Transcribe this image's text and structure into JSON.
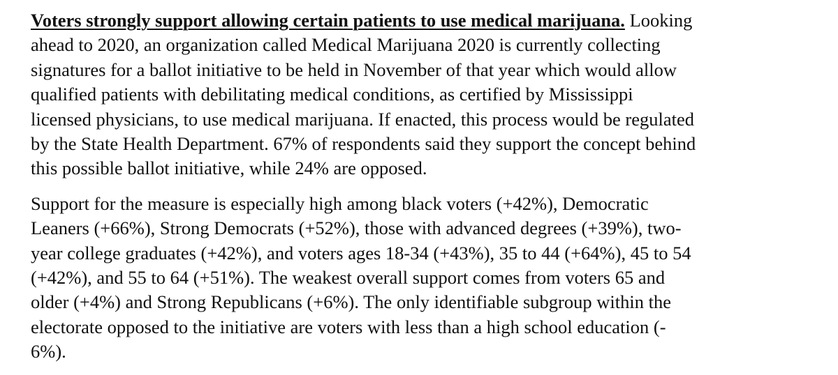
{
  "document": {
    "paragraph_1": {
      "heading": "Voters strongly support allowing certain patients to use medical marijuana.",
      "lines": [
        " Looking",
        "ahead to 2020, an organization called Medical Marijuana 2020 is currently collecting",
        "signatures for a ballot initiative to be held in November of that year which would allow",
        "qualified patients with debilitating medical conditions, as certified by Mississippi",
        "licensed physicians, to use medical marijuana. If enacted, this process would be regulated",
        "by the State Health Department. 67% of respondents said they support the concept behind",
        "this possible ballot initiative, while 24% are opposed."
      ]
    },
    "paragraph_2": {
      "lines": [
        "Support for the measure is especially high among black voters (+42%), Democratic",
        "Leaners (+66%), Strong Democrats (+52%), those with advanced degrees (+39%), two-",
        "year college graduates (+42%), and voters ages 18-34 (+43%), 35 to 44 (+64%), 45 to 54",
        "(+42%), and 55 to 64 (+51%). The weakest overall support comes from voters 65 and",
        "older (+4%) and Strong Republicans (+6%). The only identifiable subgroup within the",
        "electorate opposed to the initiative are voters with less than a high school education (-",
        "6%)."
      ]
    }
  }
}
